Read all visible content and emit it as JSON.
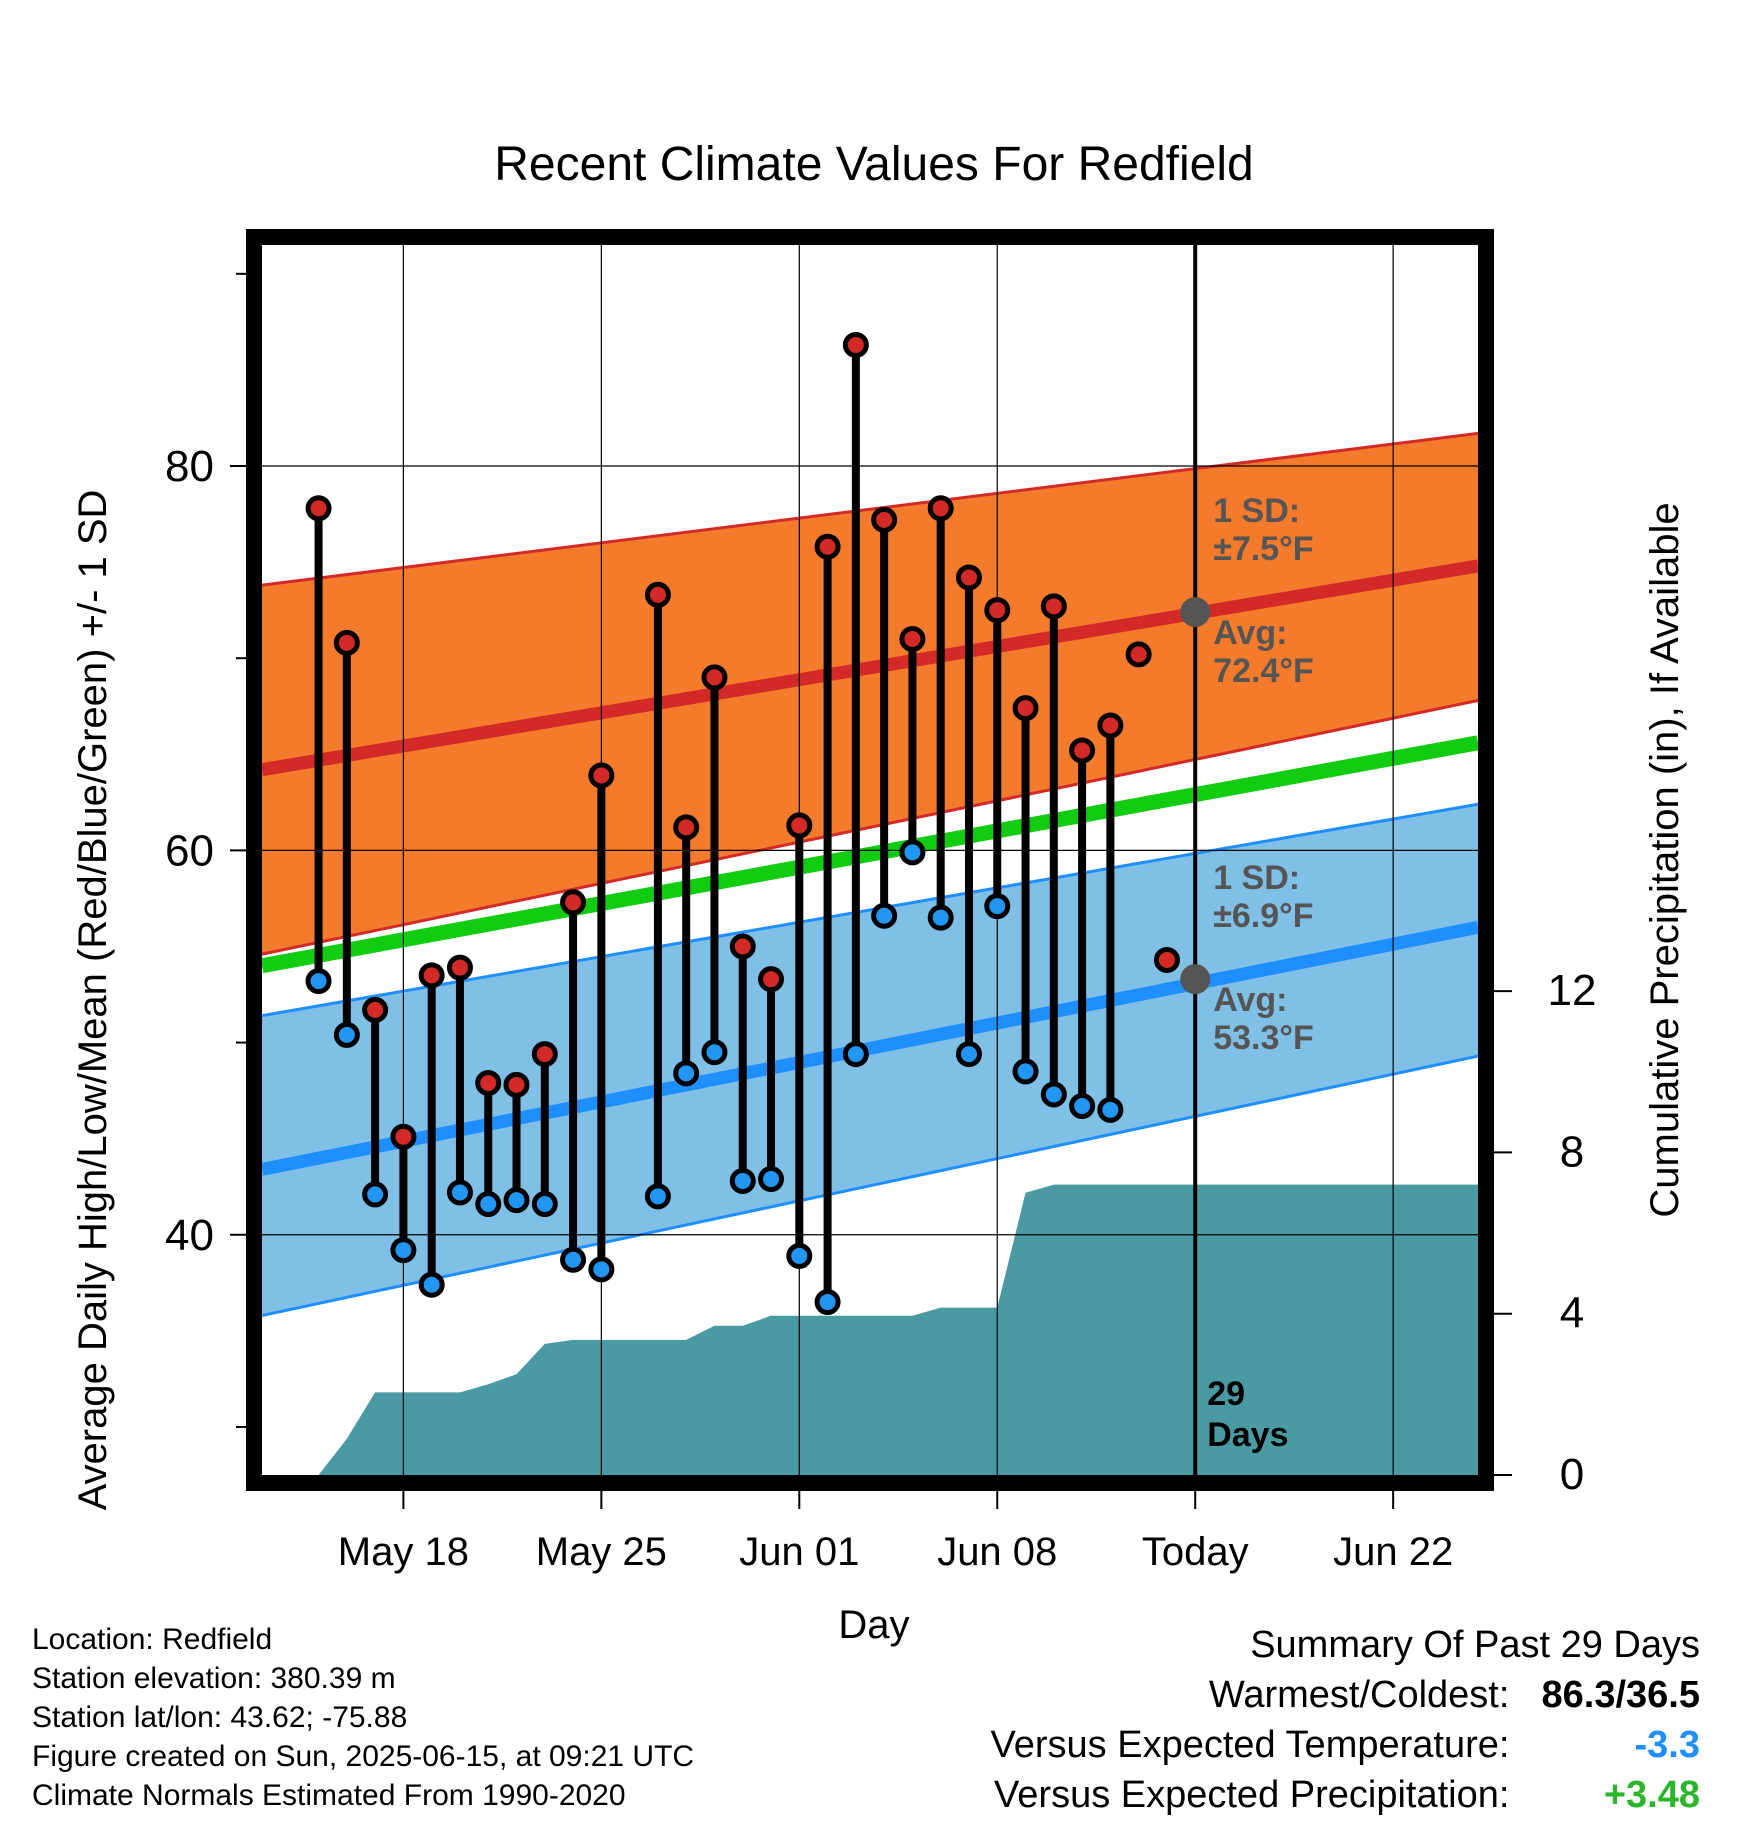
{
  "chart_data": {
    "type": "line",
    "title": "Recent Climate Values For Redfield",
    "xlabel": "Day",
    "ylabel": "Average Daily High/Low/Mean (Red/Blue/Green) +/- 1 SD",
    "y2label": "Cumulative Precipitation (in), If Available",
    "ylim": [
      27.5,
      91.5
    ],
    "y_ticks": [
      40,
      60,
      80
    ],
    "y2lim": [
      0,
      30.5
    ],
    "y2_ticks": [
      0,
      4,
      8,
      12
    ],
    "xlim": [
      "2025-05-13",
      "2025-06-25"
    ],
    "x_ticks": [
      {
        "date": "2025-05-18",
        "label": "May 18"
      },
      {
        "date": "2025-05-25",
        "label": "May 25"
      },
      {
        "date": "2025-06-01",
        "label": "Jun 01"
      },
      {
        "date": "2025-06-08",
        "label": "Jun 08"
      },
      {
        "date": "2025-06-15",
        "label": "Today"
      },
      {
        "date": "2025-06-22",
        "label": "Jun 22"
      }
    ],
    "grid": true,
    "days_marker": {
      "date": "2025-06-15",
      "label_line1": "29",
      "label_line2": "Days"
    },
    "daily": {
      "dates": [
        "2025-05-15",
        "2025-05-16",
        "2025-05-17",
        "2025-05-18",
        "2025-05-19",
        "2025-05-20",
        "2025-05-21",
        "2025-05-22",
        "2025-05-23",
        "2025-05-24",
        "2025-05-25",
        "2025-05-26",
        "2025-05-27",
        "2025-05-28",
        "2025-05-29",
        "2025-05-30",
        "2025-05-31",
        "2025-06-01",
        "2025-06-02",
        "2025-06-03",
        "2025-06-04",
        "2025-06-05",
        "2025-06-06",
        "2025-06-07",
        "2025-06-08",
        "2025-06-09",
        "2025-06-10",
        "2025-06-11",
        "2025-06-12",
        "2025-06-13",
        "2025-06-14"
      ],
      "highs": [
        77.8,
        70.8,
        51.7,
        45.1,
        53.5,
        53.9,
        47.9,
        47.8,
        49.4,
        57.3,
        63.9,
        null,
        73.3,
        61.2,
        69.0,
        55.0,
        53.3,
        61.3,
        75.8,
        86.3,
        77.2,
        71.0,
        77.8,
        74.2,
        72.5,
        67.4,
        72.7,
        65.2,
        66.5,
        70.2,
        54.3
      ],
      "lows": [
        53.2,
        50.4,
        42.1,
        39.2,
        37.4,
        42.2,
        41.6,
        41.8,
        41.6,
        38.7,
        38.2,
        null,
        42.0,
        48.4,
        49.5,
        42.8,
        42.9,
        38.9,
        36.5,
        49.4,
        56.6,
        59.9,
        56.5,
        49.4,
        57.1,
        48.5,
        47.3,
        46.7,
        46.5,
        null,
        null
      ]
    },
    "normals": {
      "dates": [
        "2025-05-13",
        "2025-06-25"
      ],
      "avg_high": [
        64.2,
        74.8
      ],
      "avg_high_plus_sd": [
        73.8,
        81.7
      ],
      "avg_high_minus_sd": [
        54.6,
        67.8
      ],
      "avg_mean": [
        54.0,
        65.6
      ],
      "avg_low": [
        43.4,
        56.0
      ],
      "avg_low_plus_sd": [
        51.4,
        62.4
      ],
      "avg_low_minus_sd": [
        35.8,
        49.3
      ]
    },
    "annotations": [
      {
        "id": "high",
        "date": "2025-06-15",
        "value": 72.4,
        "sd_line": "1 SD:",
        "sd_value": "±7.5°F",
        "avg_line": "Avg:",
        "avg_value": "72.4°F"
      },
      {
        "id": "low",
        "date": "2025-06-15",
        "value": 53.3,
        "sd_line": "1 SD:",
        "sd_value": "±6.9°F",
        "avg_line": "Avg:",
        "avg_value": "53.3°F"
      }
    ],
    "precipitation": {
      "dates": [
        "2025-05-15",
        "2025-05-16",
        "2025-05-17",
        "2025-05-18",
        "2025-05-19",
        "2025-05-20",
        "2025-05-21",
        "2025-05-22",
        "2025-05-23",
        "2025-05-24",
        "2025-05-25",
        "2025-05-26",
        "2025-05-27",
        "2025-05-28",
        "2025-05-29",
        "2025-05-30",
        "2025-05-31",
        "2025-06-01",
        "2025-06-02",
        "2025-06-03",
        "2025-06-04",
        "2025-06-05",
        "2025-06-06",
        "2025-06-07",
        "2025-06-08",
        "2025-06-09",
        "2025-06-10",
        "2025-06-11",
        "2025-06-12",
        "2025-06-13",
        "2025-06-14",
        "2025-06-15",
        "2025-06-25"
      ],
      "cumulative": [
        0.0,
        0.9,
        2.05,
        2.05,
        2.05,
        2.05,
        2.25,
        2.5,
        3.25,
        3.35,
        3.35,
        3.35,
        3.35,
        3.35,
        3.7,
        3.7,
        3.95,
        3.95,
        3.95,
        3.95,
        3.95,
        3.95,
        4.15,
        4.15,
        4.15,
        7.0,
        7.2,
        7.2,
        7.2,
        7.2,
        7.2,
        7.2,
        7.2
      ]
    },
    "colors": {
      "high_band": "#f47a2c",
      "high_line": "#d32a27",
      "mean_line": "#11cc11",
      "low_band": "#80c0e6",
      "low_line": "#1f8fff",
      "precip": "#4a9aa3",
      "high_marker": "#d32a27",
      "low_marker": "#2196f3",
      "avg_dot": "#555555",
      "label_gray": "#555555",
      "cold": "#1f8fff",
      "wet": "#2ab52a"
    }
  },
  "info": {
    "location": "Location: Redfield",
    "elevation": "Station elevation: 380.39 m",
    "latlon": "Station lat/lon: 43.62; -75.88",
    "created": "Figure created on Sun, 2025-06-15, at 09:21 UTC",
    "normals": "Climate Normals Estimated From 1990-2020"
  },
  "summary": {
    "title": "Summary Of Past 29 Days",
    "warmest_label": "Warmest/Coldest:",
    "warmest_value": "86.3/36.5",
    "temp_label": "Versus Expected Temperature:",
    "temp_value": "-3.3",
    "precip_label": "Versus Expected Precipitation:",
    "precip_value": "+3.48"
  }
}
